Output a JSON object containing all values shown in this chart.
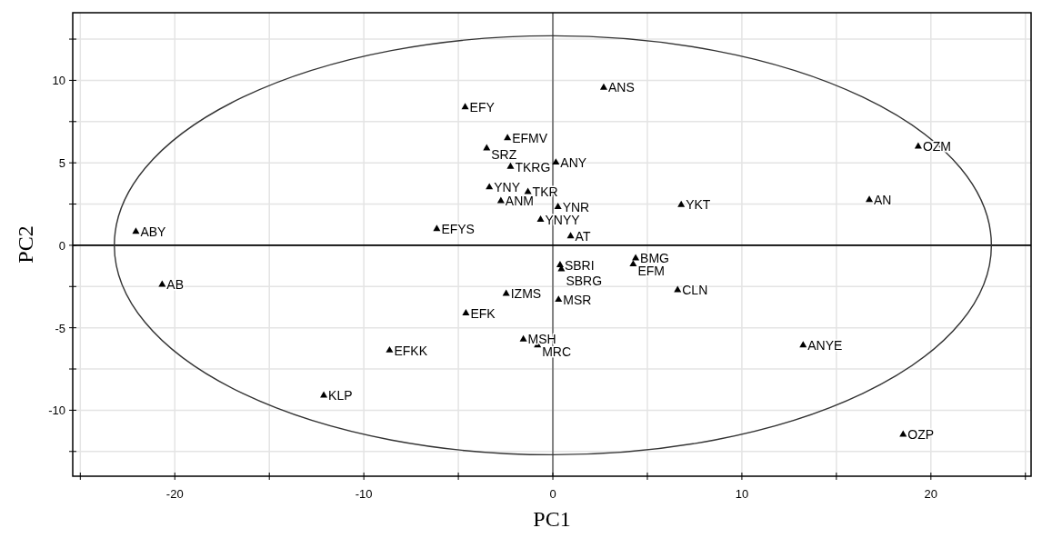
{
  "chart_data": {
    "type": "scatter",
    "xlabel": "PC1",
    "ylabel": "PC2",
    "xlim": [
      -25.4,
      25.3
    ],
    "ylim": [
      -14,
      14.1
    ],
    "xticks": [
      {
        "value": -25,
        "label": null
      },
      -20,
      {
        "value": -15,
        "label": null
      },
      -10,
      {
        "value": -5,
        "label": null
      },
      0,
      {
        "value": 5,
        "label": null
      },
      10,
      {
        "value": 15,
        "label": null
      },
      20,
      {
        "value": 25,
        "label": null
      }
    ],
    "yticks": [
      {
        "value": -12.5,
        "label": null
      },
      -10,
      {
        "value": -7.5,
        "label": null
      },
      -5,
      {
        "value": -2.5,
        "label": null
      },
      0,
      {
        "value": 2.5,
        "label": null
      },
      5,
      {
        "value": 7.5,
        "label": null
      },
      10,
      {
        "value": 12.5,
        "label": null
      }
    ],
    "grid": true,
    "ref_lines": [
      {
        "axis": "x",
        "value": 0,
        "color": "#808080"
      },
      {
        "axis": "y",
        "value": 0,
        "color": "#000000"
      }
    ],
    "series": [
      {
        "color": "#000000",
        "marker": "triangle",
        "x": [
          2.69,
          -4.64,
          -2.4,
          -3.5,
          -2.24,
          0.16,
          -3.36,
          -1.32,
          -2.75,
          0.27,
          -0.65,
          -6.14,
          0.94,
          6.79,
          0.38,
          0.45,
          4.38,
          4.25,
          -2.47,
          0.3,
          -4.6,
          -1.56,
          -0.81,
          -8.64,
          6.6,
          -22.06,
          -20.67,
          -12.12,
          19.33,
          16.74,
          13.24,
          18.53
        ],
        "values": [
          9.56,
          8.37,
          6.5,
          5.88,
          4.76,
          5.02,
          3.52,
          3.24,
          2.69,
          2.33,
          1.56,
          0.99,
          0.55,
          2.45,
          -1.2,
          -1.45,
          -0.79,
          -1.15,
          -2.93,
          -3.3,
          -4.12,
          -5.7,
          -6.06,
          -6.37,
          -2.71,
          0.83,
          -2.38,
          -9.1,
          5.99,
          2.75,
          -6.06,
          -11.47
        ],
        "value_labels": [
          "ANS",
          "EFY",
          "EFMV",
          "SRZ",
          "TKRG",
          "ANY",
          "YNY",
          "TKR",
          "ANM",
          "YNR",
          "YNYY",
          "EFYS",
          "AT",
          "YKT",
          "SBRI",
          "SBRG",
          "BMG",
          "EFM",
          "IZMS",
          "MSR",
          "EFK",
          "MSH",
          "MRC",
          "EFKK",
          "CLN",
          "ABY",
          "AB",
          "KLP",
          "OZM",
          "AN",
          "ANYE",
          "OZP"
        ]
      }
    ]
  }
}
